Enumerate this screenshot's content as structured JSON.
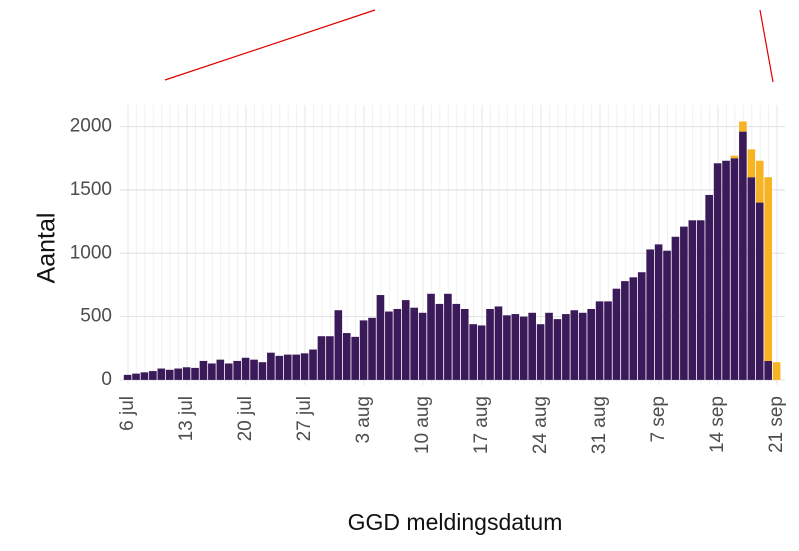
{
  "chart_data": {
    "type": "bar",
    "stacked": true,
    "x_label": "GGD meldingsdatum",
    "y_label": "Aantal",
    "categories": [
      "6 jul",
      null,
      null,
      null,
      null,
      null,
      null,
      "13 jul",
      null,
      null,
      null,
      null,
      null,
      null,
      "20 jul",
      null,
      null,
      null,
      null,
      null,
      null,
      "27 jul",
      null,
      null,
      null,
      null,
      null,
      null,
      "3 aug",
      null,
      null,
      null,
      null,
      null,
      null,
      "10 aug",
      null,
      null,
      null,
      null,
      null,
      null,
      "17 aug",
      null,
      null,
      null,
      null,
      null,
      null,
      "24 aug",
      null,
      null,
      null,
      null,
      null,
      null,
      "31 aug",
      null,
      null,
      null,
      null,
      null,
      null,
      "7 sep",
      null,
      null,
      null,
      null,
      null,
      null,
      "14 sep",
      null,
      null,
      null,
      null,
      null,
      null,
      "21 sep"
    ],
    "series": [
      {
        "color": "#3b1a5a",
        "values": [
          40,
          50,
          60,
          70,
          90,
          80,
          90,
          100,
          95,
          150,
          130,
          160,
          130,
          150,
          175,
          160,
          140,
          215,
          190,
          200,
          200,
          210,
          240,
          345,
          345,
          550,
          370,
          340,
          470,
          490,
          670,
          540,
          560,
          630,
          570,
          530,
          680,
          600,
          680,
          600,
          560,
          440,
          430,
          560,
          580,
          510,
          520,
          500,
          530,
          440,
          530,
          480,
          520,
          550,
          530,
          560,
          620,
          620,
          720,
          780,
          810,
          850,
          1030,
          1070,
          1020,
          1130,
          1210,
          1260,
          1260,
          1460,
          1710,
          1730,
          1750,
          1960,
          1600,
          1400,
          150,
          0
        ]
      },
      {
        "color": "#f6b323",
        "values": [
          0,
          0,
          0,
          0,
          0,
          0,
          0,
          0,
          0,
          0,
          0,
          0,
          0,
          0,
          0,
          0,
          0,
          0,
          0,
          0,
          0,
          0,
          0,
          0,
          0,
          0,
          0,
          0,
          0,
          0,
          0,
          0,
          0,
          0,
          0,
          0,
          0,
          0,
          0,
          0,
          0,
          0,
          0,
          0,
          0,
          0,
          0,
          0,
          0,
          0,
          0,
          0,
          0,
          0,
          0,
          0,
          0,
          0,
          0,
          0,
          0,
          0,
          0,
          0,
          0,
          0,
          0,
          0,
          0,
          0,
          0,
          0,
          20,
          80,
          220,
          330,
          1450,
          140
        ]
      }
    ],
    "ylim": [
      -40,
      2170
    ],
    "yticks": [
      0,
      500,
      1000,
      1500,
      2000
    ],
    "grid": true
  }
}
